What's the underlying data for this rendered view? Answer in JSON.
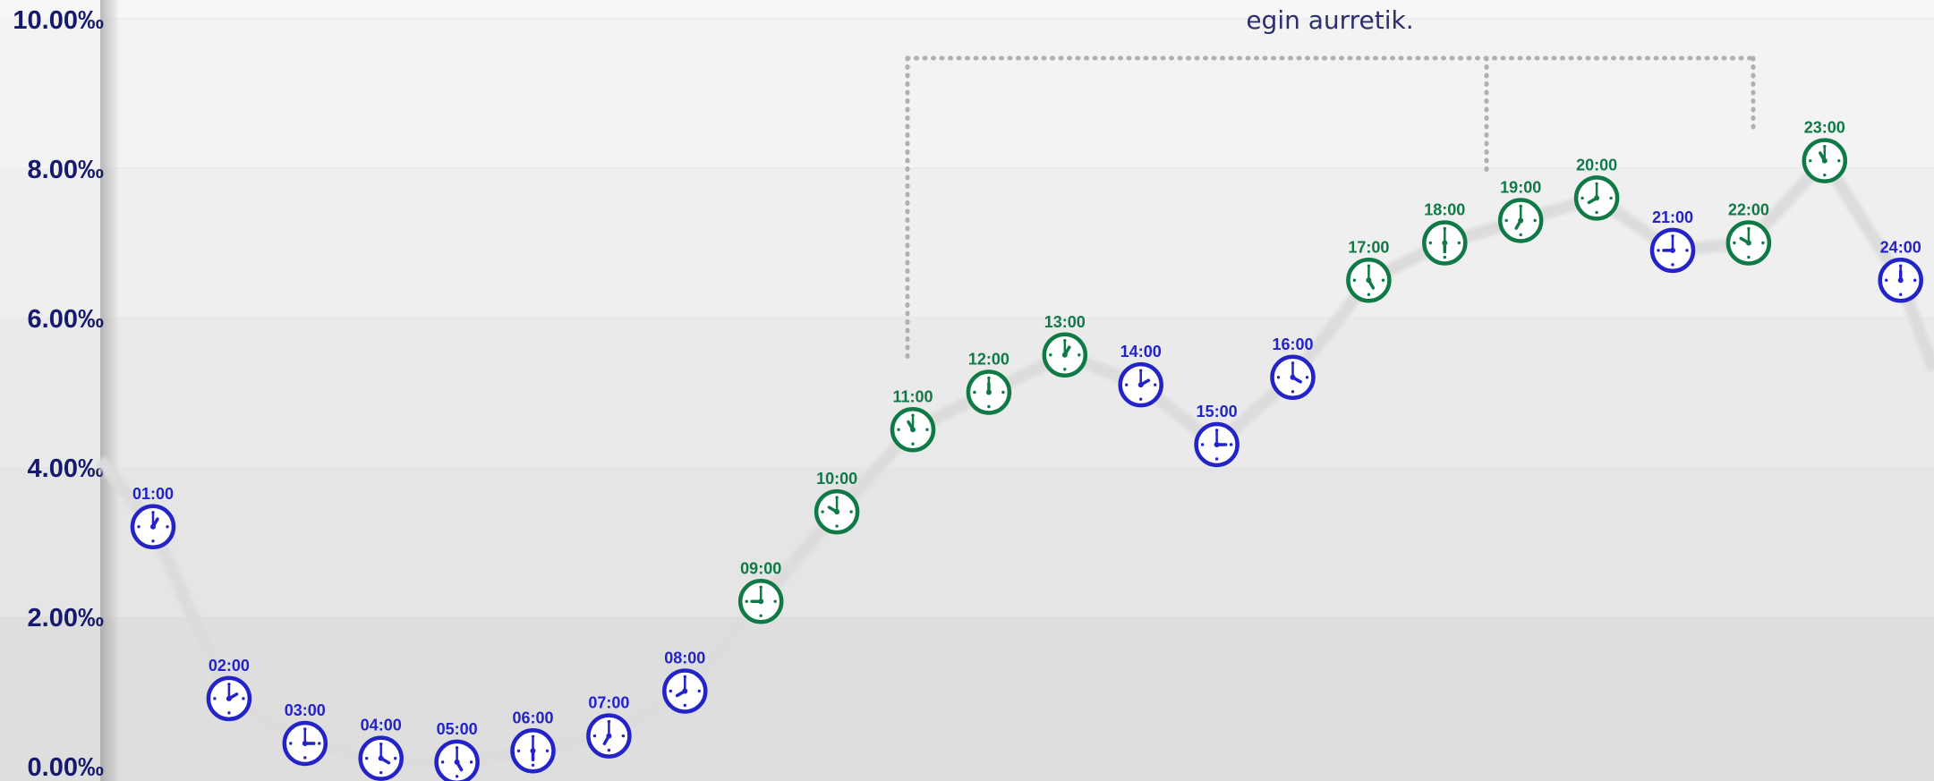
{
  "chart_data": {
    "type": "line",
    "title": "",
    "xlabel": "",
    "ylabel": "",
    "ylim": [
      0,
      10
    ],
    "yticks": [
      "0.00‰",
      "2.00‰",
      "4.00‰",
      "6.00‰",
      "8.00‰",
      "10.00‰"
    ],
    "grid": "alternating horizontal bands",
    "marker": "clock-icon",
    "colors": {
      "night": "#2323c8",
      "day": "#0f7a45",
      "line": "#e0e0e0",
      "bracket": "#b0b0b0"
    },
    "annotation": "egin aurretik.",
    "points": [
      {
        "x": "01:00",
        "y": 3.2,
        "group": "night"
      },
      {
        "x": "02:00",
        "y": 0.9,
        "group": "night"
      },
      {
        "x": "03:00",
        "y": 0.3,
        "group": "night"
      },
      {
        "x": "04:00",
        "y": 0.1,
        "group": "night"
      },
      {
        "x": "05:00",
        "y": 0.05,
        "group": "night"
      },
      {
        "x": "06:00",
        "y": 0.2,
        "group": "night"
      },
      {
        "x": "07:00",
        "y": 0.4,
        "group": "night"
      },
      {
        "x": "08:00",
        "y": 1.0,
        "group": "night"
      },
      {
        "x": "09:00",
        "y": 2.2,
        "group": "day"
      },
      {
        "x": "10:00",
        "y": 3.4,
        "group": "day"
      },
      {
        "x": "11:00",
        "y": 4.5,
        "group": "day"
      },
      {
        "x": "12:00",
        "y": 5.0,
        "group": "day"
      },
      {
        "x": "13:00",
        "y": 5.5,
        "group": "day"
      },
      {
        "x": "14:00",
        "y": 5.1,
        "group": "night"
      },
      {
        "x": "15:00",
        "y": 4.3,
        "group": "night"
      },
      {
        "x": "16:00",
        "y": 5.2,
        "group": "night"
      },
      {
        "x": "17:00",
        "y": 6.5,
        "group": "day"
      },
      {
        "x": "18:00",
        "y": 7.0,
        "group": "day"
      },
      {
        "x": "19:00",
        "y": 7.3,
        "group": "day"
      },
      {
        "x": "20:00",
        "y": 7.6,
        "group": "day"
      },
      {
        "x": "21:00",
        "y": 6.9,
        "group": "night"
      },
      {
        "x": "22:00",
        "y": 7.0,
        "group": "day"
      },
      {
        "x": "23:00",
        "y": 8.1,
        "group": "day"
      },
      {
        "x": "24:00",
        "y": 6.5,
        "group": "night"
      }
    ]
  }
}
